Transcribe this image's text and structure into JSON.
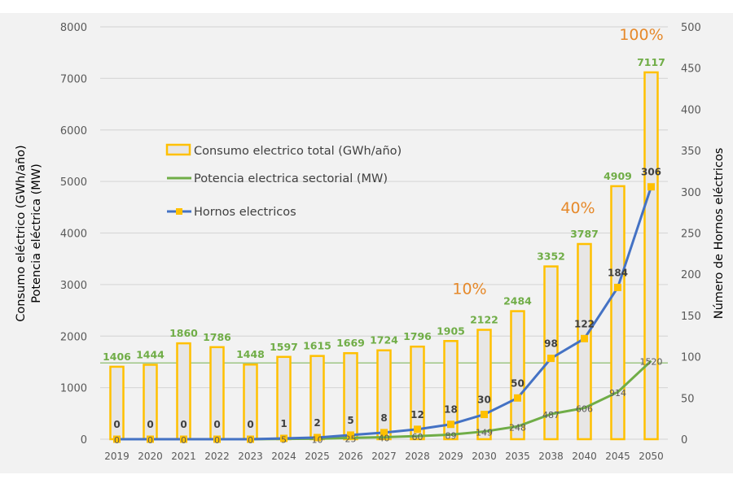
{
  "chart_data": {
    "type": "bar",
    "title": "",
    "categories": [
      "2019",
      "2020",
      "2021",
      "2022",
      "2023",
      "2024",
      "2025",
      "2026",
      "2027",
      "2028",
      "2029",
      "2030",
      "2035",
      "2038",
      "2040",
      "2045",
      "2050"
    ],
    "series": [
      {
        "name": "Consumo electrico total (GWh/año)",
        "type": "bar",
        "axis": "left",
        "color": "#ffc000",
        "fill": "#e7e6e6",
        "label_color": "#70ad47",
        "values": [
          1406,
          1444,
          1860,
          1786,
          1448,
          1597,
          1615,
          1669,
          1724,
          1796,
          1905,
          2122,
          2484,
          3352,
          3787,
          4909,
          7117
        ]
      },
      {
        "name": "Potencia electrica sectorial (MW)",
        "type": "line",
        "axis": "left",
        "color": "#70ad47",
        "values": [
          0,
          0,
          0,
          0,
          0,
          5,
          10,
          25,
          40,
          60,
          89,
          149,
          248,
          487,
          606,
          914,
          1520
        ]
      },
      {
        "name": "Hornos electricos",
        "type": "line",
        "axis": "right",
        "color": "#4472c4",
        "marker_color": "#ffc000",
        "values": [
          0,
          0,
          0,
          0,
          0,
          1,
          2,
          5,
          8,
          12,
          18,
          30,
          50,
          98,
          122,
          184,
          306
        ]
      }
    ],
    "reference_line": {
      "value": 1480,
      "axis": "left",
      "color": "#70ad47"
    },
    "annotations": [
      {
        "text": "10%",
        "category": "2030"
      },
      {
        "text": "40%",
        "category": "2040"
      },
      {
        "text": "100%",
        "category": "2050"
      }
    ],
    "y_left": {
      "label_parts": [
        {
          "text": "Consumo ",
          "color": "#595959"
        },
        {
          "text": "eléctrico",
          "color": "#ffc000"
        },
        {
          "text": " (GWh/año)",
          "color": "#595959"
        }
      ],
      "label_line2": {
        "text": "Potencia eléctrica (MW)",
        "color": "#70ad47"
      },
      "ylim": [
        0,
        8000
      ],
      "ticks": [
        0,
        1000,
        2000,
        3000,
        4000,
        5000,
        6000,
        7000,
        8000
      ]
    },
    "y_right": {
      "label": "Número de Hornos eléctricos",
      "label_color": "#5b9bd5",
      "ylim": [
        0,
        500
      ],
      "ticks": [
        0,
        50,
        100,
        150,
        200,
        250,
        300,
        350,
        400,
        450,
        500
      ]
    },
    "xlabel": "",
    "grid": true,
    "legend": {
      "placement": "upper-left-inside",
      "entries": [
        "Consumo electrico total (GWh/año)",
        "Potencia electrica sectorial (MW)",
        "Hornos electricos"
      ]
    }
  }
}
